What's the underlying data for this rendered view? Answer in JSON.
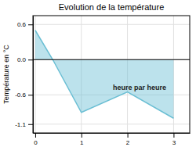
{
  "chart_data": {
    "type": "area",
    "title": "Evolution de la température",
    "ylabel": "Température en °C",
    "annotation": "heure par heure",
    "x": [
      0,
      0.38,
      1,
      2,
      3
    ],
    "values": [
      0.5,
      0.0,
      -0.9,
      -0.55,
      -1.0
    ],
    "color": "#6bbfd4",
    "xlim": [
      -0.05,
      3.35
    ],
    "ylim": [
      -1.25,
      0.75
    ],
    "xticks": [
      0,
      1,
      2,
      3
    ],
    "yticks": [
      -1.1,
      -0.6,
      {
        "value": 0.0,
        "label": "0.0"
      },
      0.6
    ],
    "grid": true
  }
}
